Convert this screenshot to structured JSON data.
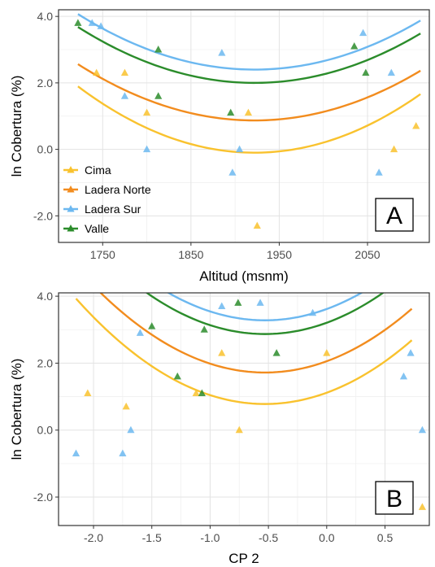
{
  "colors": {
    "Cima": "#F9C22E",
    "Ladera Norte": "#F28C1E",
    "Ladera Sur": "#6CB8F0",
    "Valle": "#2B8C2B"
  },
  "chart_data": [
    {
      "type": "scatter",
      "panel_label": "A",
      "xlabel": "Altitud (msnm)",
      "ylabel": "ln Cobertura (%)",
      "xlim": [
        1700,
        2120
      ],
      "ylim": [
        -2.8,
        4.2
      ],
      "xticks": [
        1750,
        1850,
        1950,
        2050
      ],
      "yticks": [
        -2,
        0,
        2,
        4
      ],
      "ytick_labels": [
        "-2.0",
        "0.0",
        "2.0",
        "4.0"
      ],
      "grid": true,
      "legend_position": "inside-left",
      "legend": [
        "Cima",
        "Ladera Norte",
        "Ladera Sur",
        "Valle"
      ],
      "series": [
        {
          "name": "Cima",
          "points": [
            [
              1743,
              2.3
            ],
            [
              1775,
              2.3
            ],
            [
              1800,
              1.1
            ],
            [
              1915,
              1.1
            ],
            [
              1925,
              -2.3
            ],
            [
              2080,
              0.0
            ],
            [
              2105,
              0.7
            ]
          ],
          "curve": {
            "x0": 1922,
            "y0": -0.1,
            "a": 4.985e-05,
            "xmin": 1722,
            "xmax": 2110
          }
        },
        {
          "name": "Ladera Norte",
          "points": [],
          "curve": {
            "x0": 1922,
            "y0": 0.87,
            "a": 4.232e-05,
            "xmin": 1722,
            "xmax": 2110
          }
        },
        {
          "name": "Ladera Sur",
          "points": [
            [
              1738,
              3.8
            ],
            [
              1748,
              3.7
            ],
            [
              1775,
              1.6
            ],
            [
              1800,
              0.0
            ],
            [
              1885,
              2.9
            ],
            [
              1897,
              -0.7
            ],
            [
              1905,
              0.0
            ],
            [
              2045,
              3.5
            ],
            [
              2063,
              -0.7
            ],
            [
              2077,
              2.3
            ]
          ],
          "curve": {
            "x0": 1922,
            "y0": 2.4,
            "a": 4.175e-05,
            "xmin": 1722,
            "xmax": 2110
          }
        },
        {
          "name": "Valle",
          "points": [
            [
              1722,
              3.8
            ],
            [
              1813,
              3.0
            ],
            [
              1813,
              1.6
            ],
            [
              1895,
              1.1
            ],
            [
              2035,
              3.1
            ],
            [
              2048,
              2.3
            ]
          ],
          "curve": {
            "x0": 1922,
            "y0": 2.0,
            "a": 4.204e-05,
            "xmin": 1722,
            "xmax": 2110
          }
        }
      ]
    },
    {
      "type": "scatter",
      "panel_label": "B",
      "xlabel": "CP 2",
      "ylabel": "ln Cobertura (%)",
      "xlim": [
        -2.3,
        0.88
      ],
      "ylim": [
        -2.85,
        4.1
      ],
      "xticks": [
        -2.0,
        -1.5,
        -1.0,
        -0.5,
        0.0,
        0.5
      ],
      "xtick_labels": [
        "-2.0",
        "-1.5",
        "-1.0",
        "-0.5",
        "0.0",
        "0.5"
      ],
      "yticks": [
        -2,
        0,
        2,
        4
      ],
      "ytick_labels": [
        "-2.0",
        "0.0",
        "2.0",
        "4.0"
      ],
      "grid": true,
      "series": [
        {
          "name": "Cima",
          "points": [
            [
              -2.05,
              1.1
            ],
            [
              -1.72,
              0.7
            ],
            [
              -1.12,
              1.1
            ],
            [
              -0.9,
              2.3
            ],
            [
              -0.75,
              0.0
            ],
            [
              0.0,
              2.3
            ],
            [
              0.82,
              -2.3
            ]
          ],
          "curve": {
            "x0": -0.53,
            "y0": 0.78,
            "a": 1.2,
            "xmin": -2.15,
            "xmax": 0.73
          }
        },
        {
          "name": "Ladera Norte",
          "points": [],
          "curve": {
            "x0": -0.53,
            "y0": 1.72,
            "a": 1.2,
            "xmin": -2.15,
            "xmax": 0.73
          }
        },
        {
          "name": "Ladera Sur",
          "points": [
            [
              -2.15,
              -0.7
            ],
            [
              -1.75,
              -0.7
            ],
            [
              -1.68,
              0.0
            ],
            [
              -1.6,
              2.9
            ],
            [
              -0.9,
              3.7
            ],
            [
              -0.57,
              3.8
            ],
            [
              -0.12,
              3.5
            ],
            [
              0.66,
              1.6
            ],
            [
              0.72,
              2.3
            ],
            [
              0.82,
              0.0
            ]
          ],
          "curve": {
            "x0": -0.53,
            "y0": 3.28,
            "a": 1.2,
            "xmin": -2.15,
            "xmax": 0.73
          }
        },
        {
          "name": "Valle",
          "points": [
            [
              -1.5,
              3.1
            ],
            [
              -1.28,
              1.6
            ],
            [
              -1.05,
              3.0
            ],
            [
              -1.07,
              1.1
            ],
            [
              -0.76,
              3.8
            ],
            [
              -0.43,
              2.3
            ]
          ],
          "curve": {
            "x0": -0.53,
            "y0": 2.87,
            "a": 1.2,
            "xmin": -2.15,
            "xmax": 0.73
          }
        }
      ]
    }
  ]
}
